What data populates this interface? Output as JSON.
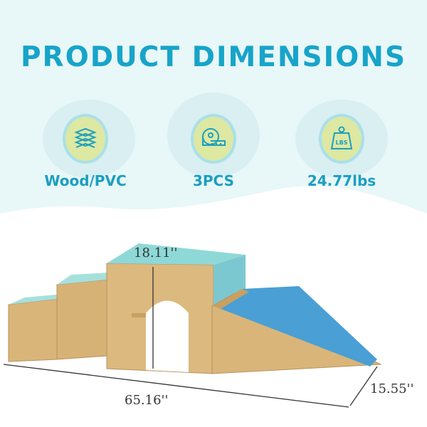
{
  "title": "PRODUCT DIMENSIONS",
  "features": [
    {
      "icon": "layers-material-icon",
      "label": "Wood/PVC"
    },
    {
      "icon": "tape-measure-icon",
      "label": "3PCS"
    },
    {
      "icon": "weight-icon",
      "label": "24.77lbs",
      "icon_text": "LBS"
    }
  ],
  "dimensions": {
    "height": "18.11''",
    "length": "65.16''",
    "width": "15.55''"
  },
  "colors": {
    "accent": "#17a4c9",
    "background": "#e8f7f8",
    "icon_fill": "#dde8a2",
    "wood": "#d9b57a",
    "teal": "#8fd8d8",
    "blue": "#4a9fd4"
  }
}
